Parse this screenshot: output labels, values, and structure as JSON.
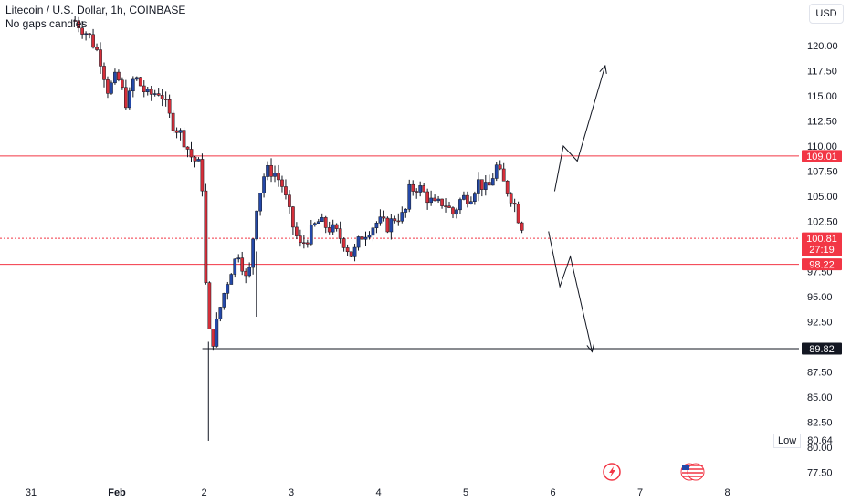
{
  "header": {
    "title": "Litecoin / U.S. Dollar, 1h, COINBASE",
    "subtitle": "No gaps candles"
  },
  "currency_button": "USD",
  "low_marker": {
    "label": "Low",
    "value": "80.64"
  },
  "icons": [
    "lightning-event-icon",
    "us-flag-event-icon"
  ],
  "colors": {
    "up": "#2448a8",
    "down": "#d62f3a",
    "level_line": "#f23645",
    "price_tag": "#f23645",
    "support_tag": "#131722",
    "grid_text": "#131722"
  },
  "chart_data": {
    "type": "candlestick",
    "title": "Litecoin / U.S. Dollar, 1h, COINBASE",
    "xlabel": "",
    "ylabel": "",
    "ylim": [
      76.25,
      123.5
    ],
    "yticks": [
      "120.00",
      "117.50",
      "115.00",
      "112.50",
      "110.00",
      "107.50",
      "105.00",
      "102.50",
      "100.00",
      "97.50",
      "95.00",
      "92.50",
      "90.00",
      "87.50",
      "85.00",
      "82.50",
      "80.00",
      "77.50"
    ],
    "xticks": [
      "31",
      "Feb",
      "2",
      "3",
      "4",
      "5",
      "6",
      "7",
      "8"
    ],
    "x_domain": [
      -1,
      6.9
    ],
    "horizontal_levels": [
      {
        "value": 109.01,
        "label": "109.01",
        "style": "solid"
      },
      {
        "value": 100.81,
        "label": "100.81",
        "sublabel": "27:19",
        "style": "dotted"
      },
      {
        "value": 98.22,
        "label": "98.22",
        "style": "solid"
      },
      {
        "value": 89.82,
        "label": "89.82",
        "style": "support"
      }
    ],
    "ohlc_path": [
      [
        -0.48,
        122.5
      ],
      [
        -0.32,
        121.0
      ],
      [
        -0.2,
        119.0
      ],
      [
        -0.1,
        115.5
      ],
      [
        0.0,
        117.0
      ],
      [
        0.12,
        114.0
      ],
      [
        0.2,
        117.0
      ],
      [
        0.35,
        115.0
      ],
      [
        0.5,
        115.5
      ],
      [
        0.62,
        112.5
      ],
      [
        0.75,
        111.0
      ],
      [
        0.85,
        109.0
      ],
      [
        0.95,
        108.0
      ],
      [
        1.0,
        104.5
      ],
      [
        1.03,
        92.0
      ],
      [
        1.1,
        90.5
      ],
      [
        1.2,
        94.5
      ],
      [
        1.3,
        97.5
      ],
      [
        1.4,
        99.5
      ],
      [
        1.5,
        96.0
      ],
      [
        1.6,
        104.0
      ],
      [
        1.7,
        107.5
      ],
      [
        1.8,
        107.5
      ],
      [
        1.9,
        106.0
      ],
      [
        2.0,
        102.5
      ],
      [
        2.1,
        100.0
      ],
      [
        2.2,
        101.0
      ],
      [
        2.3,
        102.5
      ],
      [
        2.4,
        102.0
      ],
      [
        2.5,
        101.5
      ],
      [
        2.6,
        100.5
      ],
      [
        2.7,
        99.0
      ],
      [
        2.8,
        101.0
      ],
      [
        2.9,
        101.8
      ],
      [
        3.0,
        102.5
      ],
      [
        3.1,
        102.0
      ],
      [
        3.2,
        103.0
      ],
      [
        3.3,
        103.0
      ],
      [
        3.35,
        105.5
      ],
      [
        3.45,
        106.0
      ],
      [
        3.55,
        105.0
      ],
      [
        3.65,
        104.0
      ],
      [
        3.75,
        104.5
      ],
      [
        3.85,
        103.2
      ],
      [
        3.95,
        104.8
      ],
      [
        4.05,
        105.0
      ],
      [
        4.15,
        106.5
      ],
      [
        4.25,
        105.5
      ],
      [
        4.35,
        108.0
      ],
      [
        4.45,
        106.0
      ],
      [
        4.55,
        104.5
      ],
      [
        4.6,
        103.0
      ],
      [
        4.65,
        102.0
      ],
      [
        4.67,
        100.8
      ]
    ],
    "wick_extremes": [
      {
        "x": 1.05,
        "low": 80.64,
        "high": 90.5
      },
      {
        "x": 1.6,
        "low": 93.0,
        "high": 99.5
      }
    ],
    "projection_arrows": [
      {
        "direction": "up",
        "path": [
          [
            5.02,
            105.5
          ],
          [
            5.12,
            110.0
          ],
          [
            5.28,
            108.5
          ],
          [
            5.6,
            118.0
          ]
        ]
      },
      {
        "direction": "down",
        "path": [
          [
            4.95,
            101.5
          ],
          [
            5.08,
            96.0
          ],
          [
            5.2,
            99.0
          ],
          [
            5.45,
            89.5
          ]
        ]
      }
    ]
  }
}
